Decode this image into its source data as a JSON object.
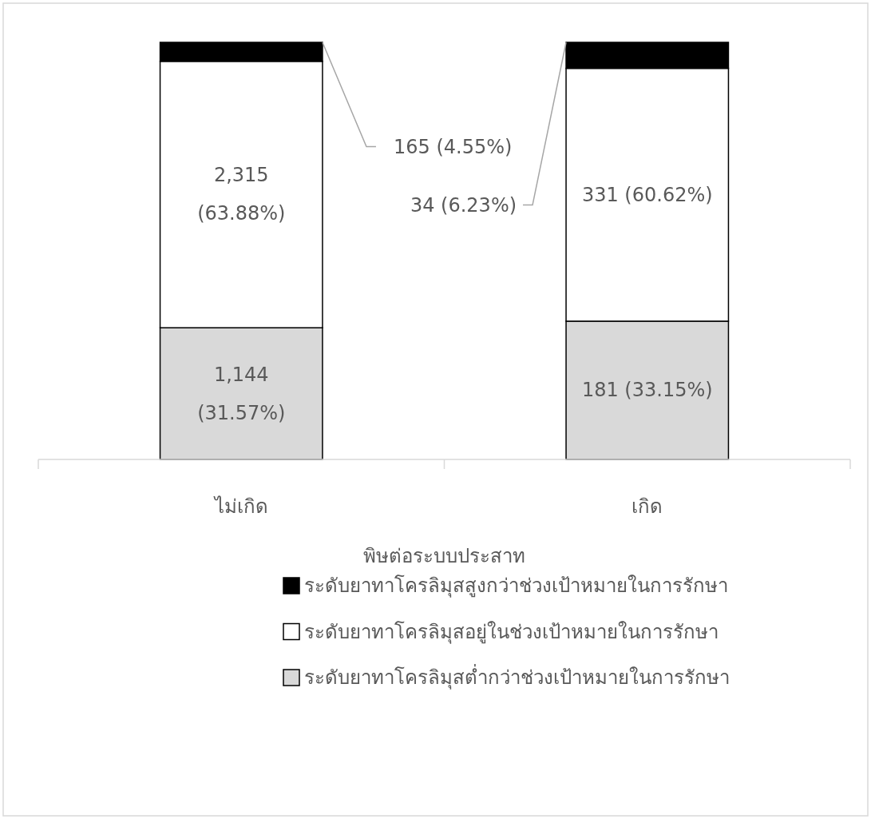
{
  "chart_data": {
    "type": "bar",
    "stacked": true,
    "categories": [
      "ไม่เกิด",
      "เกิด"
    ],
    "xlabel": "พิษต่อระบบประสาท",
    "ylim": [
      0,
      100
    ],
    "legend": "bottom",
    "series": [
      {
        "name": "ระดับยาทาโครลิมุสต่ำกว่าช่วงเป้าหมายในการรักษา",
        "color": "#d9d9d9",
        "values": [
          31.57,
          33.15
        ],
        "value_labels": [
          "1,144 (31.57%)",
          "181 (33.15%)"
        ]
      },
      {
        "name": "ระดับยาทาโครลิมุสอยู่ในช่วงเป้าหมายในการรักษา",
        "color": "#ffffff",
        "values": [
          63.88,
          60.62
        ],
        "value_labels": [
          "2,315 (63.88%)",
          "331 (60.62%)"
        ]
      },
      {
        "name": "ระดับยาทาโครลิมุสสูงกว่าช่วงเป้าหมายในการรักษา",
        "color": "#000000",
        "values": [
          4.55,
          6.23
        ],
        "value_labels": [
          "165 (4.55%)",
          "34 (6.23%)"
        ]
      }
    ]
  }
}
